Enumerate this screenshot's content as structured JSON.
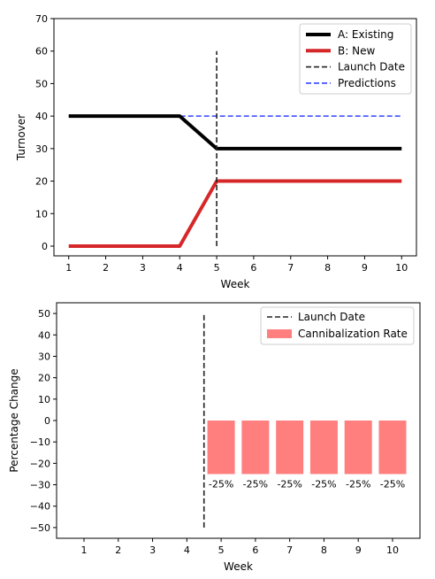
{
  "chart_data": [
    {
      "type": "line",
      "xlabel": "Week",
      "ylabel": "Turnover",
      "x": [
        1,
        2,
        3,
        4,
        5,
        6,
        7,
        8,
        9,
        10
      ],
      "xticks": [
        "1",
        "2",
        "3",
        "4",
        "5",
        "6",
        "7",
        "8",
        "9",
        "10"
      ],
      "yticks": [
        "0",
        "10",
        "20",
        "30",
        "40",
        "50",
        "60",
        "70"
      ],
      "ylim": [
        -3,
        70
      ],
      "xlim": [
        0.6,
        10.4
      ],
      "grid": false,
      "legend_position": "top-right",
      "series": [
        {
          "name": "A: Existing",
          "color": "#000000",
          "style": "solid",
          "values": [
            40,
            40,
            40,
            40,
            30,
            30,
            30,
            30,
            30,
            30
          ]
        },
        {
          "name": "B: New",
          "color": "#d62728",
          "style": "solid",
          "values": [
            0,
            0,
            0,
            0,
            20,
            20,
            20,
            20,
            20,
            20
          ]
        },
        {
          "name": "Predictions",
          "color": "#3344ff",
          "style": "dashed",
          "values": [
            40,
            40,
            40,
            40,
            40,
            40,
            40,
            40,
            40,
            40
          ]
        }
      ],
      "vline": {
        "name": "Launch Date",
        "x": 5,
        "ymin": 0,
        "ymax": 60,
        "color": "#222222",
        "style": "dashed"
      }
    },
    {
      "type": "bar",
      "xlabel": "Week",
      "ylabel": "Percentage Change",
      "categories": [
        "1",
        "2",
        "3",
        "4",
        "5",
        "6",
        "7",
        "8",
        "9",
        "10"
      ],
      "yticks": [
        "−50",
        "−40",
        "−30",
        "−20",
        "−10",
        "0",
        "10",
        "20",
        "30",
        "40",
        "50"
      ],
      "ylim": [
        -55,
        55
      ],
      "xlim": [
        0.2,
        10.8
      ],
      "grid": false,
      "legend_position": "top-right",
      "series": [
        {
          "name": "Cannibalization Rate",
          "color": "#ff7f7f",
          "values": [
            null,
            null,
            null,
            null,
            -25,
            -25,
            -25,
            -25,
            -25,
            -25
          ],
          "data_labels": [
            "",
            "",
            "",
            "",
            "-25%",
            "-25%",
            "-25%",
            "-25%",
            "-25%",
            "-25%"
          ]
        }
      ],
      "vline": {
        "name": "Launch Date",
        "x": 4.5,
        "ymin": -50,
        "ymax": 50,
        "color": "#222222",
        "style": "dashed"
      }
    }
  ]
}
